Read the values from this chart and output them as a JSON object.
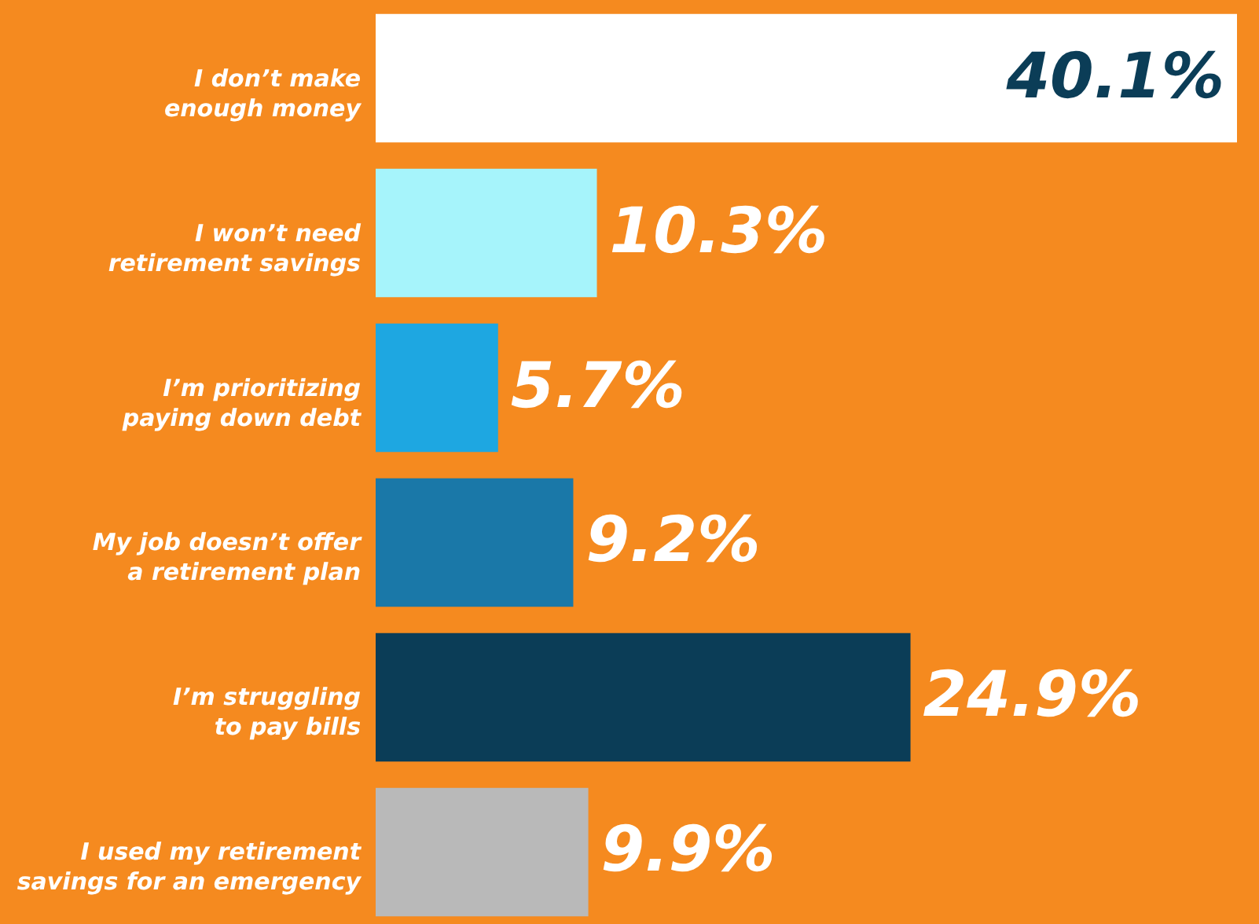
{
  "chart_data": {
    "type": "bar",
    "orientation": "horizontal",
    "categories": [
      "I don’t make enough money",
      "I won’t need retirement savings",
      "I’m prioritizing paying down debt",
      "My job doesn’t offer a retirement plan",
      "I’m struggling to pay bills",
      "I used my retirement savings for an emergency"
    ],
    "values": [
      40.1,
      10.3,
      5.7,
      9.2,
      24.9,
      9.9
    ],
    "colors": [
      "#ffffff",
      "#a6f4fb",
      "#1ea7e1",
      "#1a78a8",
      "#0b3d57",
      "#b9b9b9"
    ],
    "value_labels": [
      "40.1%",
      "10.3%",
      "5.7%",
      "9.2%",
      "24.9%",
      "9.9%"
    ],
    "grid": false
  }
}
